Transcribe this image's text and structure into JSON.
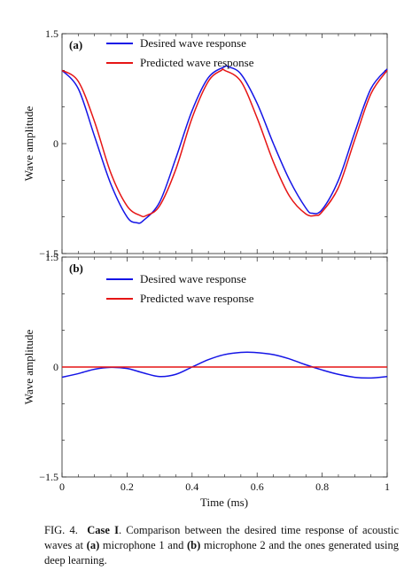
{
  "chart_data": [
    {
      "type": "line",
      "panel_label": "(a)",
      "ylabel": "Wave amplitude",
      "xlabel": "",
      "xlim": [
        0,
        1
      ],
      "ylim": [
        -1.5,
        1.5
      ],
      "yticks": [
        -1.5,
        0,
        1.5
      ],
      "ytick_labels": [
        "−1.5",
        "0",
        "1.5"
      ],
      "legend_position": "top-left",
      "series": [
        {
          "name": "Desired wave response",
          "color": "#1515e6",
          "x": [
            0,
            0.05,
            0.1,
            0.15,
            0.2,
            0.23,
            0.25,
            0.3,
            0.35,
            0.4,
            0.45,
            0.5,
            0.51,
            0.55,
            0.6,
            0.65,
            0.7,
            0.75,
            0.77,
            0.8,
            0.85,
            0.9,
            0.95,
            1.0
          ],
          "values": [
            1.0,
            0.75,
            0.1,
            -0.55,
            -1.0,
            -1.08,
            -1.05,
            -0.8,
            -0.2,
            0.45,
            0.9,
            1.05,
            1.05,
            0.95,
            0.55,
            0.0,
            -0.5,
            -0.88,
            -0.95,
            -0.9,
            -0.5,
            0.15,
            0.75,
            1.02
          ]
        },
        {
          "name": "Predicted wave response",
          "color": "#e61515",
          "x": [
            0,
            0.05,
            0.1,
            0.15,
            0.2,
            0.24,
            0.26,
            0.3,
            0.35,
            0.4,
            0.45,
            0.49,
            0.5,
            0.55,
            0.6,
            0.65,
            0.7,
            0.75,
            0.78,
            0.8,
            0.85,
            0.9,
            0.95,
            1.0
          ],
          "values": [
            1.0,
            0.85,
            0.3,
            -0.4,
            -0.85,
            -0.98,
            -0.98,
            -0.85,
            -0.35,
            0.35,
            0.85,
            1.0,
            1.0,
            0.85,
            0.35,
            -0.25,
            -0.72,
            -0.96,
            -0.98,
            -0.93,
            -0.6,
            0.05,
            0.68,
            1.0
          ]
        }
      ]
    },
    {
      "type": "line",
      "panel_label": "(b)",
      "ylabel": "Wave amplitude",
      "xlabel": "Time (ms)",
      "xlim": [
        0,
        1
      ],
      "ylim": [
        -1.5,
        1.5
      ],
      "xticks": [
        0,
        0.2,
        0.4,
        0.6,
        0.8,
        1
      ],
      "xtick_labels": [
        "0",
        "0.2",
        "0.4",
        "0.6",
        "0.8",
        "1"
      ],
      "yticks": [
        -1.5,
        0,
        1.5
      ],
      "ytick_labels": [
        "−1.5",
        "0",
        "1.5"
      ],
      "legend_position": "top-left",
      "series": [
        {
          "name": "Desired wave response",
          "color": "#1515e6",
          "x": [
            0,
            0.05,
            0.1,
            0.15,
            0.2,
            0.25,
            0.3,
            0.35,
            0.4,
            0.45,
            0.5,
            0.55,
            0.59,
            0.65,
            0.7,
            0.75,
            0.8,
            0.85,
            0.9,
            0.95,
            1.0
          ],
          "values": [
            -0.14,
            -0.09,
            -0.03,
            -0.005,
            -0.02,
            -0.08,
            -0.13,
            -0.1,
            0.0,
            0.1,
            0.17,
            0.2,
            0.2,
            0.17,
            0.11,
            0.03,
            -0.04,
            -0.1,
            -0.14,
            -0.15,
            -0.13
          ]
        },
        {
          "name": "Predicted wave response",
          "color": "#e61515",
          "x": [
            0,
            1
          ],
          "values": [
            0,
            0
          ]
        }
      ]
    }
  ],
  "caption": {
    "fig": "FIG. 4.",
    "case": "Case I",
    "t1": ". Comparison between the desired time response of acoustic waves at ",
    "a": "(a)",
    "t2": " microphone 1 and ",
    "b": "(b)",
    "t3": " microphone 2 and the ones generated using deep learning."
  }
}
